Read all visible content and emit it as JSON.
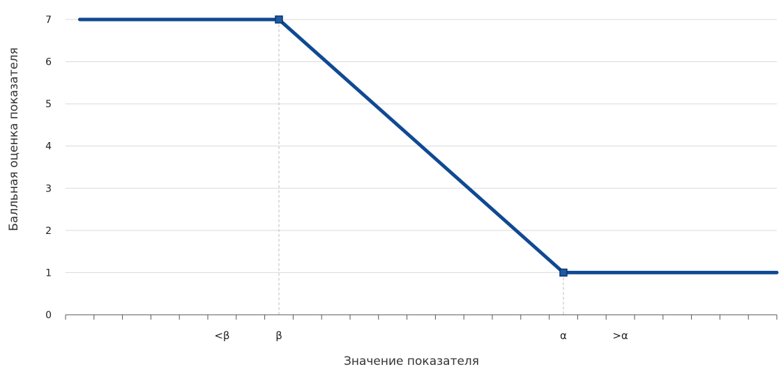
{
  "chart_data": {
    "type": "line",
    "title": "",
    "xlabel": "Значение показателя",
    "ylabel": "Балльная оценка показателя",
    "ylim": [
      0,
      7
    ],
    "yticks": [
      0,
      1,
      2,
      3,
      4,
      5,
      6,
      7
    ],
    "xlim": [
      0,
      25
    ],
    "x_tick_labels": [
      {
        "x": 5.5,
        "label": "<β"
      },
      {
        "x": 7.5,
        "label": "β"
      },
      {
        "x": 17.5,
        "label": "α"
      },
      {
        "x": 19.5,
        "label": ">α"
      }
    ],
    "grid": {
      "horizontal": true,
      "vertical": false
    },
    "series": [
      {
        "color": "#0f4a92",
        "points": [
          {
            "x": 0.5,
            "y": 7
          },
          {
            "x": 7.5,
            "y": 7
          },
          {
            "x": 17.5,
            "y": 1
          },
          {
            "x": 25,
            "y": 1
          }
        ]
      }
    ],
    "markers": [
      {
        "x": 7.5,
        "y": 7
      },
      {
        "x": 17.5,
        "y": 1
      }
    ],
    "reference_lines": [
      {
        "x": 7.5,
        "y": 7
      },
      {
        "x": 17.5,
        "y": 1
      }
    ],
    "colors": {
      "line": "#0f4a92",
      "marker_fill": "#1d5aa0",
      "marker_stroke": "#0b3570",
      "grid": "#d9d9d9",
      "axis": "#555555",
      "reference": "#bdbdbd"
    }
  }
}
